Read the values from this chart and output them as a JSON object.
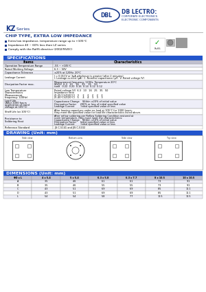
{
  "logo_text": "DBL",
  "company_line1": "DB LECTRO:",
  "company_line2": "CORPORATE ELECTRONICS",
  "company_line3": "ELECTRONIC COMPONENTS",
  "series_kz": "KZ",
  "series_rest": " Series",
  "chip_type": "CHIP TYPE, EXTRA LOW IMPEDANCE",
  "features": [
    "Extra low impedance, temperature range up to +105°C",
    "Impedance 40 ~ 60% less than LZ series",
    "Comply with the RoHS directive (2002/95/EC)"
  ],
  "spec_header": "SPECIFICATIONS",
  "spec_rows": [
    [
      "Items",
      "Characteristics",
      5
    ],
    [
      "Operation Temperature Range",
      "-55 ~ +105°C",
      5
    ],
    [
      "Rated Working Voltage",
      "6.3 ~ 50V",
      5
    ],
    [
      "Capacitance Tolerance",
      "±20% at 120Hz, 20°C",
      5
    ],
    [
      "Leakage Current",
      "I = 0.01CV or 3μA whichever is greater (after 2 minutes)\nI: Leakage current (μA)  C: Nominal capacitance (μF)  V: Rated voltage (V)",
      9
    ],
    [
      "Dissipation Factor max.",
      "Measurement frequency: 120Hz, Temperature 20°C\nWV(V)  6.3   10    16    25    35    50\ntanδ   0.22  0.20  0.16  0.14  0.12  0.12",
      12
    ],
    [
      "Low Temperature\nCharacteristics\n(Measurement\nfrequency: 120Hz)",
      "Rated voltage (V)  6.3   10   16   25   35   50\nImpedance ratio\nZ(-25°C)/Z(20°C)   3     2    2    2    2    2\nZ(-40°C)/Z(20°C)   5     4    4    3    3    3",
      16
    ],
    [
      "Load Life\n(After 2000 hours\napplication of rated\nvoltage at 105°C)",
      "Capacitance Change    Within ±20% of initial value\nDissipation Factor     200% or less of initial specified value\nLeakage Current        Initial specified value or less",
      13
    ],
    [
      "Shelf Life (at 105°C)",
      "After leaving capacitors under no load at 105°C for 1000 hours,\nthey meet the specified value for load life characteristics listed above.",
      9
    ],
    [
      "Resistance to\nSoldering Heat",
      "After reflow soldering per Reflow Soldering Condition restored at\nroom temperature, they must meet the characteristics:\nCapacitance Change    Within ±10% of initial value\nDissipation Factor     Initial specified value or less\nLeakage Current        Initial specified value or less",
      16
    ],
    [
      "Reference Standard",
      "JIS C-5141 and JIS C-5102",
      5
    ]
  ],
  "drawing_header": "DRAWING (Unit: mm)",
  "dimensions_header": "DIMENSIONS (Unit: mm)",
  "dim_cols": [
    "ΦD x L",
    "4 x 5.4",
    "5 x 5.4",
    "6.3 x 5.8",
    "6.3 x 7.7",
    "8 x 10.5",
    "10 x 10.5"
  ],
  "dim_rows": [
    [
      "A",
      "3.5",
      "4.6",
      "6.1",
      "6.1",
      "7.3",
      "9.1"
    ],
    [
      "B",
      "3.5",
      "4.6",
      "5.5",
      "5.5",
      "7.3",
      "9.1"
    ],
    [
      "C",
      "4.3",
      "5.1",
      "6.9",
      "6.9",
      "8.5",
      "10.1"
    ],
    [
      "D",
      "4.3",
      "5.1",
      "6.9",
      "6.9",
      "8.5",
      "10.1"
    ],
    [
      "L",
      "5.4",
      "5.4",
      "5.8",
      "7.7",
      "10.5",
      "10.5"
    ]
  ],
  "blue": "#1a3a8a",
  "dark_blue": "#1a3a8a",
  "light_blue_hdr": "#2255cc",
  "bg": "#ffffff",
  "table_hdr_bg": "#c8c8d8",
  "alt_row": "#eeeef8",
  "border": "#999999"
}
